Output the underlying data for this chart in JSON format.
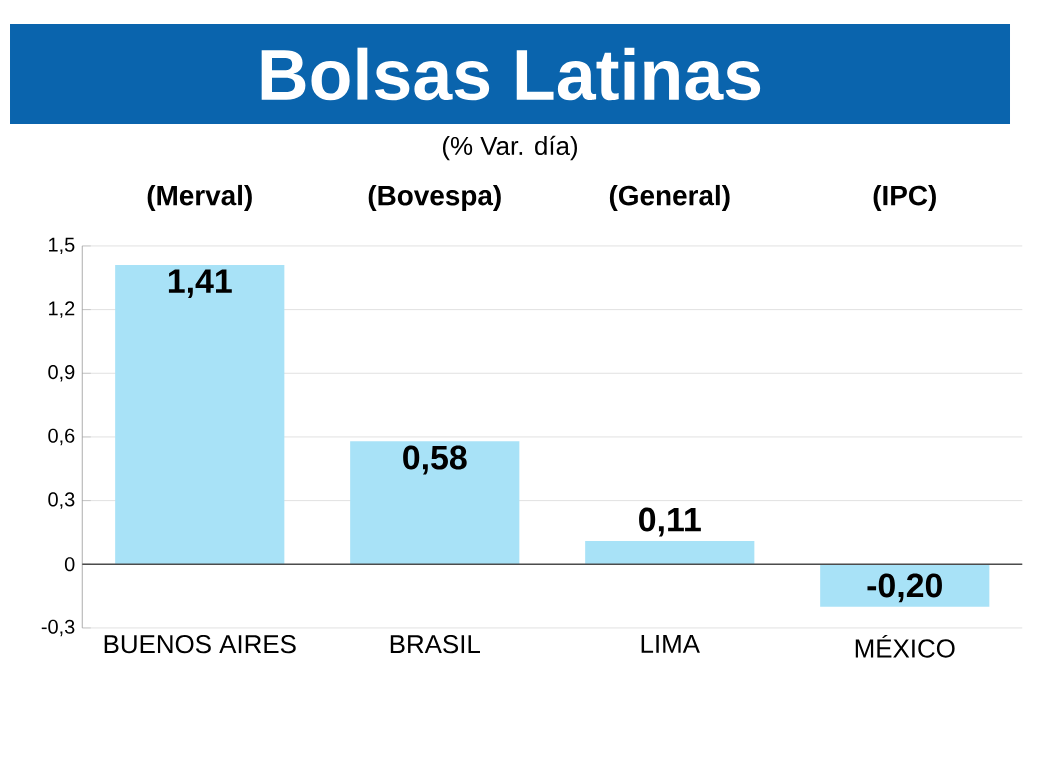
{
  "chart_data": {
    "type": "bar",
    "title": "Bolsas Latinas",
    "subtitle": "(% Var. día)",
    "categories": [
      "BUENOS AIRES",
      "BRASIL",
      "LIMA",
      "MÉXICO"
    ],
    "values": [
      1.41,
      0.58,
      0.11,
      -0.2
    ],
    "color": "#a8e2f7",
    "value_labels": [
      "1,41",
      "0,58",
      "0,11",
      "-0,20"
    ],
    "annotations": [
      "(Merval)",
      "(Bovespa)",
      "(General)",
      "(IPC)"
    ],
    "ylim": [
      -0.3,
      1.5
    ],
    "yticks": [
      {
        "value": -0.3,
        "label": "-0,3"
      },
      {
        "value": 0,
        "label": "0"
      },
      {
        "value": 0.3,
        "label": "0,3"
      },
      {
        "value": 0.6,
        "label": "0,6"
      },
      {
        "value": 0.9,
        "label": "0,9"
      },
      {
        "value": 1.2,
        "label": "1,2"
      },
      {
        "value": 1.5,
        "label": "1,5"
      }
    ],
    "grid": "y"
  }
}
